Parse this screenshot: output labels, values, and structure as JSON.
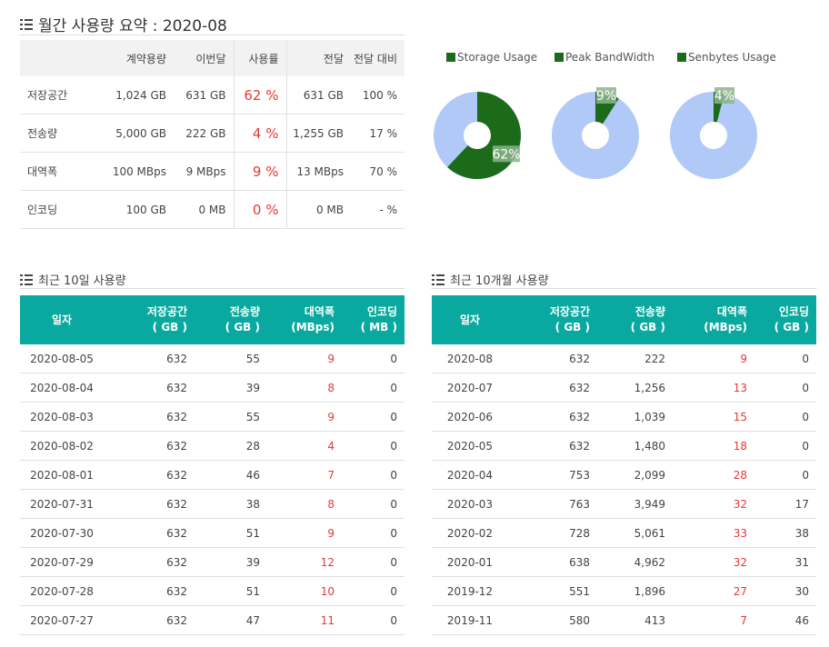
{
  "summary": {
    "title": "월간 사용량 요약 : 2020-08",
    "headers": [
      "",
      "계약용량",
      "이번달",
      "사용률",
      "전달",
      "전달 대비"
    ],
    "rows": [
      [
        "저장공간",
        "1,024 GB",
        "631 GB",
        "62 %",
        "631 GB",
        "100 %"
      ],
      [
        "전송량",
        "5,000 GB",
        "222 GB",
        "4 %",
        "1,255 GB",
        "17 %"
      ],
      [
        "대역폭",
        "100 MBps",
        "9 MBps",
        "9 %",
        "13 MBps",
        "70 %"
      ],
      [
        "인코딩",
        "100 GB",
        "0 MB",
        "0 %",
        "0 MB",
        "- %"
      ]
    ]
  },
  "charts": [
    {
      "name": "Storage Usage",
      "percent": 62,
      "label": "62%"
    },
    {
      "name": "Peak BandWidth",
      "percent": 9,
      "label": "9%"
    },
    {
      "name": "Senbytes Usage",
      "percent": 4,
      "label": "4%"
    }
  ],
  "colors": {
    "accent": "#0aa99f",
    "fill": "#1b6b1b",
    "ring": "#b0c9f7",
    "alert": "#e53935"
  },
  "daily": {
    "title": "최근 10일 사용량",
    "headers": [
      [
        "일자"
      ],
      [
        "저장공간",
        "( GB )"
      ],
      [
        "전송량",
        "( GB )"
      ],
      [
        "대역폭",
        "(MBps)"
      ],
      [
        "인코딩",
        "( MB )"
      ]
    ],
    "rows": [
      [
        "2020-08-05",
        "632",
        "55",
        "9",
        "0"
      ],
      [
        "2020-08-04",
        "632",
        "39",
        "8",
        "0"
      ],
      [
        "2020-08-03",
        "632",
        "55",
        "9",
        "0"
      ],
      [
        "2020-08-02",
        "632",
        "28",
        "4",
        "0"
      ],
      [
        "2020-08-01",
        "632",
        "46",
        "7",
        "0"
      ],
      [
        "2020-07-31",
        "632",
        "38",
        "8",
        "0"
      ],
      [
        "2020-07-30",
        "632",
        "51",
        "9",
        "0"
      ],
      [
        "2020-07-29",
        "632",
        "39",
        "12",
        "0"
      ],
      [
        "2020-07-28",
        "632",
        "51",
        "10",
        "0"
      ],
      [
        "2020-07-27",
        "632",
        "47",
        "11",
        "0"
      ]
    ]
  },
  "monthly": {
    "title": "최근 10개월 사용량",
    "headers": [
      [
        "일자"
      ],
      [
        "저장공간",
        "( GB )"
      ],
      [
        "전송량",
        "( GB )"
      ],
      [
        "대역폭",
        "(MBps)"
      ],
      [
        "인코딩",
        "( GB )"
      ]
    ],
    "rows": [
      [
        "2020-08",
        "632",
        "222",
        "9",
        "0"
      ],
      [
        "2020-07",
        "632",
        "1,256",
        "13",
        "0"
      ],
      [
        "2020-06",
        "632",
        "1,039",
        "15",
        "0"
      ],
      [
        "2020-05",
        "632",
        "1,480",
        "18",
        "0"
      ],
      [
        "2020-04",
        "753",
        "2,099",
        "28",
        "0"
      ],
      [
        "2020-03",
        "763",
        "3,949",
        "32",
        "17"
      ],
      [
        "2020-02",
        "728",
        "5,061",
        "33",
        "38"
      ],
      [
        "2020-01",
        "638",
        "4,962",
        "32",
        "31"
      ],
      [
        "2019-12",
        "551",
        "1,896",
        "27",
        "30"
      ],
      [
        "2019-11",
        "580",
        "413",
        "7",
        "46"
      ]
    ]
  }
}
